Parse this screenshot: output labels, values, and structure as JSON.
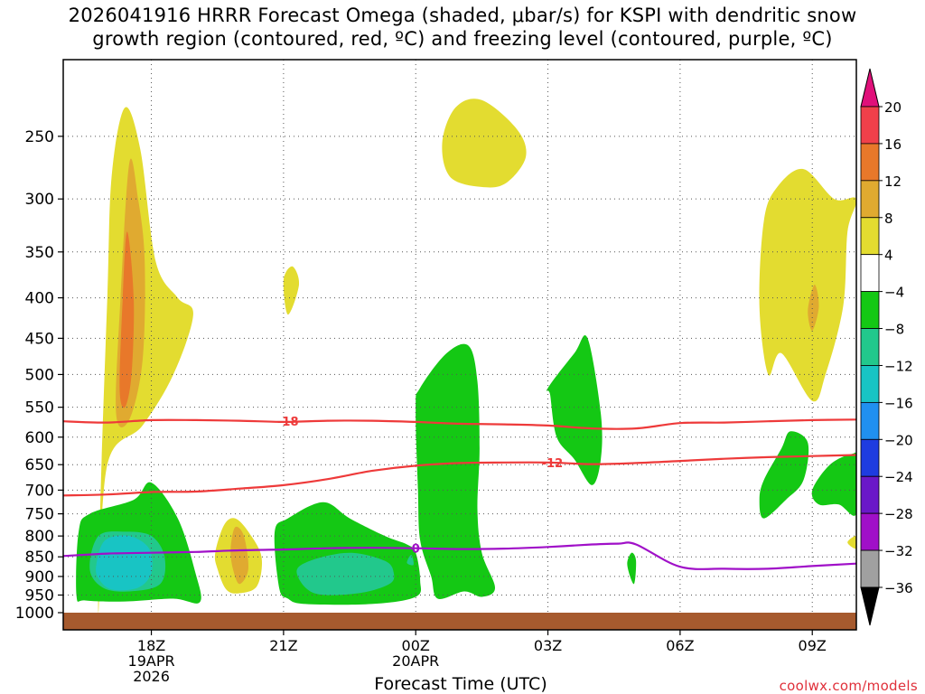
{
  "title": {
    "line1": "2026041916 HRRR Forecast Omega (shaded, μbar/s) for KSPI with dendritic snow",
    "line2": "growth region (contoured, red, ºC) and freezing level (contoured, purple, ºC)"
  },
  "xlabel": "Forecast Time (UTC)",
  "credit": "coolwx.com/models",
  "chart_data": {
    "type": "time-height cross section",
    "x_unit": "hours since 2026-04-19 16Z",
    "xlim": [
      0,
      18
    ],
    "ylim_hPa": [
      1000,
      200
    ],
    "y_ticks": [
      250,
      300,
      350,
      400,
      450,
      500,
      550,
      600,
      650,
      700,
      750,
      800,
      850,
      900,
      950,
      1000
    ],
    "x_ticks": [
      {
        "x": 2,
        "label": "18Z",
        "sub1": "19APR",
        "sub2": "2026"
      },
      {
        "x": 5,
        "label": "21Z"
      },
      {
        "x": 8,
        "label": "00Z",
        "sub1": "20APR"
      },
      {
        "x": 11,
        "label": "03Z"
      },
      {
        "x": 14,
        "label": "06Z"
      },
      {
        "x": 17,
        "label": "09Z"
      }
    ],
    "colorbar": {
      "levels": [
        -36,
        -32,
        -28,
        -24,
        -20,
        -16,
        -12,
        -8,
        -4,
        4,
        8,
        12,
        16,
        20
      ],
      "labels": [
        "20",
        "16",
        "12",
        "8",
        "4",
        "−4",
        "−8",
        "−12",
        "−16",
        "−20",
        "−24",
        "−28",
        "−32",
        "−36"
      ],
      "colors": [
        "#e0107a",
        "#f0404a",
        "#e8782a",
        "#e0aa30",
        "#e3dc30",
        "#ffffff",
        "#14c814",
        "#22c88c",
        "#18c4c4",
        "#2090f0",
        "#1e3ce0",
        "#6a18c8",
        "#a010c8",
        "#a0a0a0",
        "#000000"
      ]
    },
    "shading": [
      {
        "level": "4 to 8",
        "color": "#e3dc30",
        "regions": [
          [
            [
              0.8,
              1000
            ],
            [
              0.85,
              700
            ],
            [
              1.0,
              400
            ],
            [
              1.1,
              280
            ],
            [
              1.4,
              230
            ],
            [
              1.75,
              260
            ],
            [
              2.1,
              360
            ],
            [
              2.6,
              400
            ],
            [
              2.95,
              420
            ],
            [
              2.5,
              500
            ],
            [
              1.8,
              580
            ],
            [
              1.0,
              650
            ]
          ],
          [
            [
              5.0,
              380
            ],
            [
              5.2,
              365
            ],
            [
              5.35,
              385
            ],
            [
              5.1,
              420
            ]
          ],
          [
            [
              8.6,
              255
            ],
            [
              8.9,
              230
            ],
            [
              9.5,
              225
            ],
            [
              10.3,
              245
            ],
            [
              10.5,
              265
            ],
            [
              10.1,
              285
            ],
            [
              9.6,
              290
            ],
            [
              8.8,
              282
            ]
          ],
          [
            [
              16.0,
              500
            ],
            [
              15.8,
              410
            ],
            [
              15.9,
              320
            ],
            [
              16.2,
              290
            ],
            [
              16.8,
              275
            ],
            [
              17.5,
              300
            ],
            [
              18.0,
              300
            ],
            [
              17.8,
              330
            ],
            [
              17.7,
              410
            ],
            [
              17.3,
              500
            ],
            [
              17.0,
              540
            ],
            [
              16.3,
              470
            ]
          ],
          [
            [
              17.8,
              815
            ],
            [
              18.0,
              800
            ],
            [
              18.0,
              830
            ]
          ],
          [
            [
              3.45,
              840
            ],
            [
              3.65,
              775
            ],
            [
              3.9,
              760
            ],
            [
              4.2,
              790
            ],
            [
              4.5,
              850
            ],
            [
              4.4,
              925
            ],
            [
              4.0,
              945
            ],
            [
              3.7,
              935
            ],
            [
              3.5,
              880
            ]
          ]
        ]
      },
      {
        "level": "8 to 12",
        "color": "#e0aa30",
        "regions": [
          [
            [
              1.2,
              560
            ],
            [
              1.3,
              400
            ],
            [
              1.5,
              270
            ],
            [
              1.7,
              300
            ],
            [
              1.85,
              360
            ],
            [
              1.8,
              480
            ],
            [
              1.5,
              570
            ]
          ],
          [
            [
              3.8,
              830
            ],
            [
              3.9,
              780
            ],
            [
              4.1,
              800
            ],
            [
              4.2,
              880
            ],
            [
              4.0,
              920
            ],
            [
              3.85,
              880
            ]
          ],
          [
            [
              16.9,
              415
            ],
            [
              17.05,
              385
            ],
            [
              17.15,
              410
            ],
            [
              17.0,
              440
            ]
          ]
        ]
      },
      {
        "level": "12 to 16",
        "color": "#e8782a",
        "regions": [
          [
            [
              1.28,
              520
            ],
            [
              1.35,
              400
            ],
            [
              1.45,
              330
            ],
            [
              1.6,
              400
            ],
            [
              1.55,
              500
            ],
            [
              1.4,
              550
            ]
          ]
        ]
      },
      {
        "level": "-8 to -4",
        "color": "#14c814",
        "regions": [
          [
            [
              0.3,
              950
            ],
            [
              0.35,
              790
            ],
            [
              0.6,
              750
            ],
            [
              1.6,
              720
            ],
            [
              2.0,
              685
            ],
            [
              2.6,
              760
            ],
            [
              3.0,
              890
            ],
            [
              3.1,
              970
            ],
            [
              2.5,
              960
            ],
            [
              1.4,
              968
            ],
            [
              0.5,
              965
            ]
          ],
          [
            [
              4.9,
              930
            ],
            [
              4.8,
              790
            ],
            [
              5.1,
              760
            ],
            [
              5.9,
              725
            ],
            [
              6.5,
              760
            ],
            [
              7.3,
              800
            ],
            [
              7.8,
              820
            ],
            [
              8.0,
              840
            ],
            [
              8.1,
              910
            ],
            [
              8.0,
              955
            ],
            [
              7.0,
              975
            ],
            [
              5.5,
              975
            ],
            [
              5.1,
              960
            ]
          ],
          [
            [
              8.0,
              550
            ],
            [
              8.1,
              520
            ],
            [
              8.7,
              470
            ],
            [
              9.2,
              460
            ],
            [
              9.4,
              510
            ],
            [
              9.45,
              620
            ],
            [
              9.4,
              740
            ],
            [
              9.5,
              840
            ],
            [
              9.8,
              930
            ],
            [
              9.5,
              955
            ],
            [
              9.1,
              940
            ],
            [
              8.5,
              960
            ],
            [
              8.35,
              900
            ],
            [
              8.1,
              810
            ],
            [
              8.05,
              700
            ]
          ],
          [
            [
              11.05,
              530
            ],
            [
              11.0,
              520
            ],
            [
              11.6,
              470
            ],
            [
              11.9,
              450
            ],
            [
              12.2,
              560
            ],
            [
              12.2,
              640
            ],
            [
              12.0,
              690
            ],
            [
              11.6,
              640
            ],
            [
              11.2,
              600
            ]
          ],
          [
            [
              12.8,
              870
            ],
            [
              12.9,
              840
            ],
            [
              13.0,
              860
            ],
            [
              12.95,
              920
            ]
          ],
          [
            [
              15.8,
              720
            ],
            [
              15.9,
              680
            ],
            [
              16.3,
              620
            ],
            [
              16.5,
              590
            ],
            [
              16.9,
              610
            ],
            [
              16.8,
              680
            ],
            [
              16.4,
              720
            ],
            [
              15.9,
              760
            ]
          ],
          [
            [
              17.0,
              700
            ],
            [
              17.4,
              650
            ],
            [
              17.9,
              630
            ],
            [
              18.0,
              640
            ],
            [
              18.0,
              750
            ],
            [
              17.6,
              730
            ],
            [
              17.15,
              730
            ]
          ]
        ]
      },
      {
        "level": "-12 to -8",
        "color": "#22c88c",
        "regions": [
          [
            [
              0.6,
              880
            ],
            [
              0.8,
              800
            ],
            [
              1.4,
              790
            ],
            [
              2.0,
              800
            ],
            [
              2.3,
              850
            ],
            [
              2.2,
              920
            ],
            [
              1.5,
              940
            ],
            [
              0.9,
              930
            ]
          ],
          [
            [
              5.3,
              890
            ],
            [
              5.6,
              860
            ],
            [
              6.5,
              840
            ],
            [
              7.3,
              860
            ],
            [
              7.5,
              890
            ],
            [
              7.4,
              920
            ],
            [
              6.7,
              945
            ],
            [
              5.7,
              945
            ]
          ],
          [
            [
              7.8,
              865
            ],
            [
              7.9,
              845
            ],
            [
              7.95,
              870
            ]
          ]
        ]
      },
      {
        "level": "-16 to -12",
        "color": "#18c4c4",
        "regions": [
          [
            [
              0.75,
              870
            ],
            [
              0.95,
              810
            ],
            [
              1.5,
              800
            ],
            [
              1.95,
              830
            ],
            [
              2.0,
              890
            ],
            [
              1.7,
              930
            ],
            [
              1.1,
              935
            ],
            [
              0.8,
              905
            ]
          ]
        ]
      }
    ],
    "contours": [
      {
        "name": "-18 °C",
        "label": "-18",
        "color": "#ee3a3a",
        "label_at": [
          5.1,
          573
        ],
        "points": [
          [
            0,
            573
          ],
          [
            1,
            575
          ],
          [
            2,
            571
          ],
          [
            3,
            571
          ],
          [
            4,
            572
          ],
          [
            5,
            574
          ],
          [
            6,
            572
          ],
          [
            7,
            572
          ],
          [
            8,
            574
          ],
          [
            9,
            577
          ],
          [
            10,
            578
          ],
          [
            11,
            580
          ],
          [
            12,
            585
          ],
          [
            13,
            585
          ],
          [
            14,
            576
          ],
          [
            15,
            575
          ],
          [
            16,
            573
          ],
          [
            17,
            571
          ],
          [
            18,
            570
          ]
        ]
      },
      {
        "name": "-12 °C",
        "label": "-12",
        "color": "#ee3a3a",
        "label_at": [
          11.1,
          646
        ],
        "points": [
          [
            0,
            711
          ],
          [
            1,
            709
          ],
          [
            2,
            704
          ],
          [
            3,
            703
          ],
          [
            4,
            697
          ],
          [
            5,
            690
          ],
          [
            6,
            678
          ],
          [
            7,
            662
          ],
          [
            8,
            652
          ],
          [
            9,
            647
          ],
          [
            10,
            646
          ],
          [
            11,
            646
          ],
          [
            12,
            649
          ],
          [
            13,
            647
          ],
          [
            14,
            643
          ],
          [
            15,
            639
          ],
          [
            16,
            636
          ],
          [
            17,
            634
          ],
          [
            18,
            632
          ]
        ]
      },
      {
        "name": "0 °C freezing level",
        "label": "0",
        "color": "#a010c8",
        "label_at": [
          8.0,
          829
        ],
        "points": [
          [
            0,
            848
          ],
          [
            1,
            842
          ],
          [
            2,
            840
          ],
          [
            3,
            838
          ],
          [
            4,
            834
          ],
          [
            5,
            832
          ],
          [
            6,
            829
          ],
          [
            7,
            828
          ],
          [
            8,
            829
          ],
          [
            9,
            831
          ],
          [
            10,
            830
          ],
          [
            11,
            826
          ],
          [
            12,
            820
          ],
          [
            12.6,
            818
          ],
          [
            13,
            820
          ],
          [
            14,
            875
          ],
          [
            15,
            880
          ],
          [
            16,
            880
          ],
          [
            17,
            873
          ],
          [
            18,
            867
          ]
        ]
      }
    ],
    "surface": {
      "name": "ground",
      "color": "#a65a2e",
      "pressure_hPa": 1000
    }
  }
}
